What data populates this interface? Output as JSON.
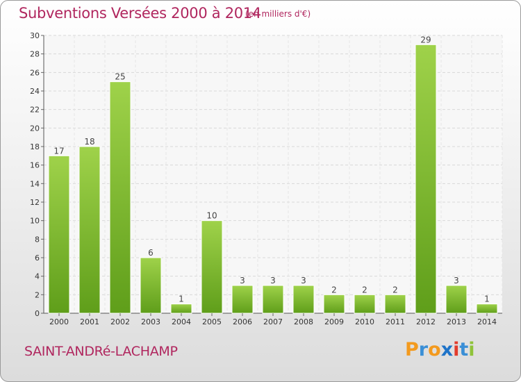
{
  "header": {
    "title": "Subventions Versées 2000 à 2014",
    "unit": "(en milliers d'€)"
  },
  "footer": {
    "commune": "SAINT-ANDRé-LACHAMP",
    "logo": "Proxiti"
  },
  "colors": {
    "accent": "#b0265e",
    "bar_light": "#9fd24a",
    "bar_dark": "#5f9e1a",
    "logo_letters": [
      "#f39a1e",
      "#3a8fd6",
      "#f39a1e",
      "#1e73c8",
      "#e23c2c",
      "#3a8fd6",
      "#8fc33a"
    ]
  },
  "chart_data": {
    "type": "bar",
    "title": "Subventions Versées 2000 à 2014",
    "subtitle": "(en milliers d'€)",
    "categories": [
      "2000",
      "2001",
      "2002",
      "2003",
      "2004",
      "2005",
      "2006",
      "2007",
      "2008",
      "2009",
      "2010",
      "2011",
      "2012",
      "2013",
      "2014"
    ],
    "values": [
      17,
      18,
      25,
      6,
      1,
      10,
      3,
      3,
      3,
      2,
      2,
      2,
      29,
      3,
      1
    ],
    "ylim": [
      0,
      30
    ],
    "yticks": [
      0,
      2,
      4,
      6,
      8,
      10,
      12,
      14,
      16,
      18,
      20,
      22,
      24,
      26,
      28,
      30
    ],
    "grid": true,
    "xlabel": "",
    "ylabel": ""
  }
}
